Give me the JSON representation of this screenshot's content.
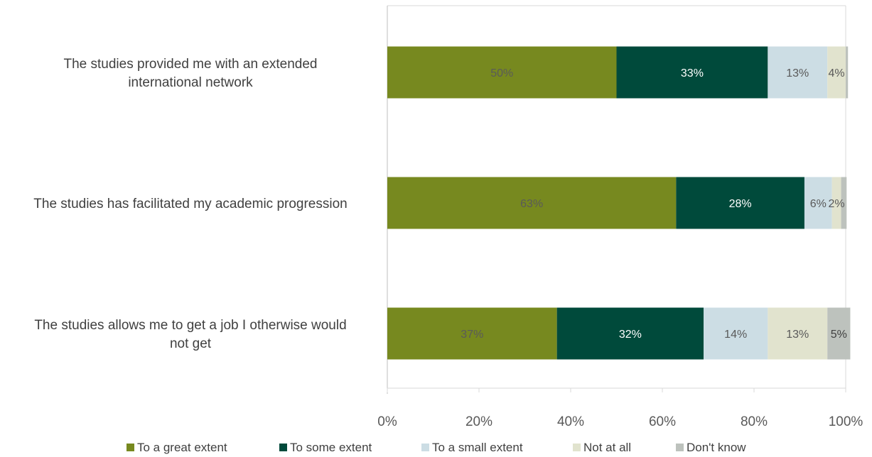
{
  "chart_data": {
    "type": "bar",
    "orientation": "horizontal",
    "stacked": true,
    "title": "",
    "xlabel": "",
    "ylabel": "",
    "xlim": [
      0,
      100
    ],
    "x_ticks": [
      "0%",
      "20%",
      "40%",
      "60%",
      "80%",
      "100%"
    ],
    "grid": true,
    "legend_position": "bottom",
    "categories": [
      [
        "The studies provided me with an extended",
        "international network"
      ],
      [
        "The studies has facilitated my academic progression"
      ],
      [
        "The studies allows me to get a job I otherwise would",
        "not get"
      ]
    ],
    "series": [
      {
        "name": "To a great extent",
        "color": "#77891F",
        "label_color": "#5a5a5a",
        "values": [
          50,
          63,
          37
        ],
        "labels": [
          "50%",
          "63%",
          "37%"
        ]
      },
      {
        "name": "To some extent",
        "color": "#004A3B",
        "label_color": "#ffffff",
        "values": [
          33,
          28,
          32
        ],
        "labels": [
          "33%",
          "28%",
          "32%"
        ]
      },
      {
        "name": "To a small extent",
        "color": "#CCDDE4",
        "label_color": "#595959",
        "values": [
          13,
          6,
          14
        ],
        "labels": [
          "13%",
          "6%",
          "14%"
        ]
      },
      {
        "name": "Not at all",
        "color": "#E1E3CE",
        "label_color": "#595959",
        "values": [
          4,
          2,
          13
        ],
        "labels": [
          "4%",
          "2%",
          "13%"
        ]
      },
      {
        "name": "Don't know",
        "color": "#BDC2BD",
        "label_color": "#404040",
        "values": [
          0.5,
          1.2,
          5
        ],
        "labels": [
          "",
          "",
          "5%"
        ]
      }
    ]
  }
}
